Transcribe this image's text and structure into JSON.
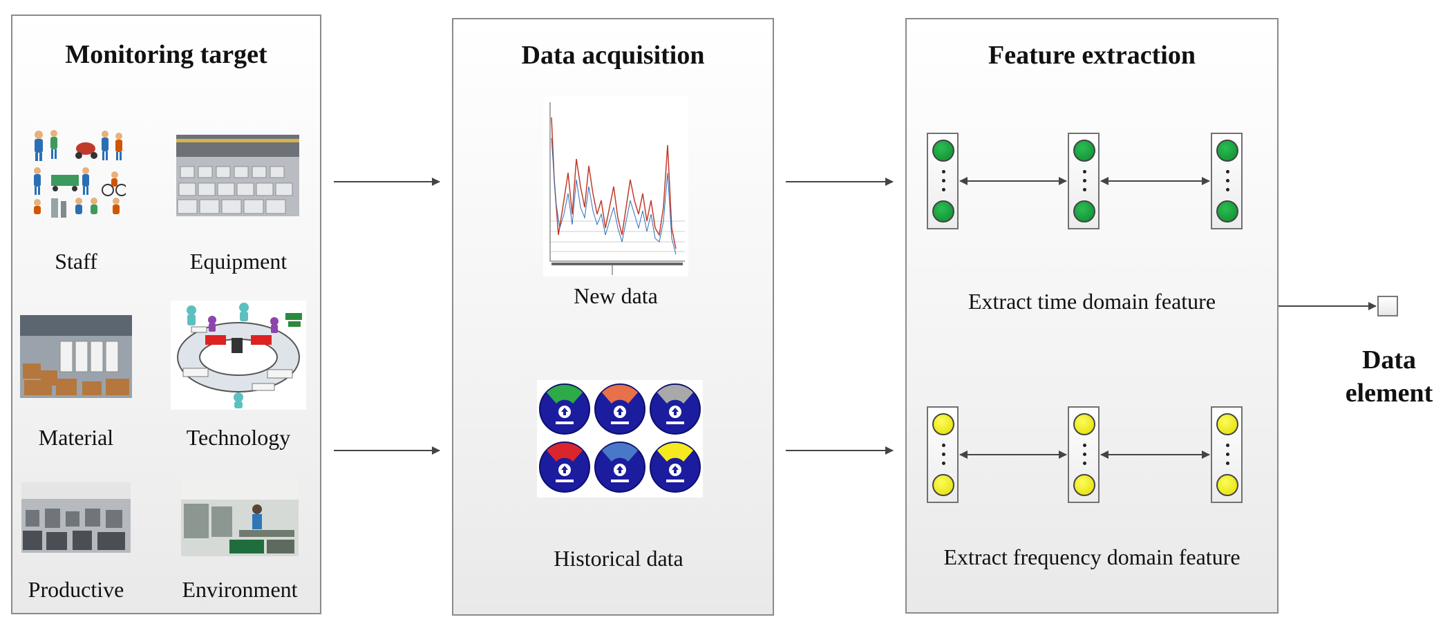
{
  "panels": {
    "monitoring": {
      "title": "Monitoring target",
      "items": [
        {
          "label": "Staff",
          "icon": "staff-people-icon"
        },
        {
          "label": "Equipment",
          "icon": "factory-equipment-photo"
        },
        {
          "label": "Material",
          "icon": "warehouse-material-photo"
        },
        {
          "label": "Technology",
          "icon": "process-flow-diagram"
        },
        {
          "label": "Productive",
          "icon": "production-line-photo"
        },
        {
          "label": "Environment",
          "icon": "workshop-environment-photo"
        }
      ]
    },
    "acquisition": {
      "title": "Data acquisition",
      "new_data": "New data",
      "historical_data": "Historical data"
    },
    "extraction": {
      "title": "Feature extraction",
      "time_feature": "Extract time domain feature",
      "frequency_feature": "Extract frequency domain feature"
    }
  },
  "output": {
    "label_line1": "Data",
    "label_line2": "element"
  },
  "colors": {
    "time_nodes": "#1a9e3f",
    "frequency_nodes": "#f2ee1c",
    "badge_blue": "#1b1d9e",
    "arrow": "#444444"
  }
}
